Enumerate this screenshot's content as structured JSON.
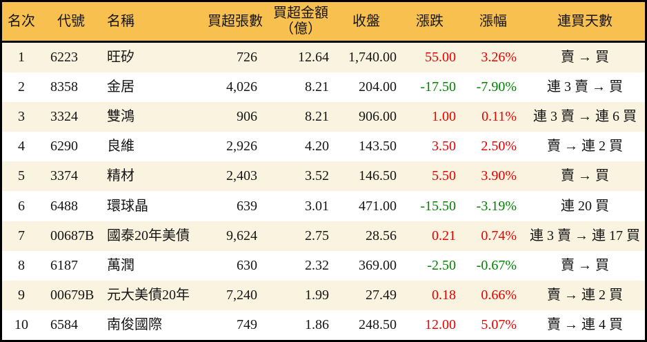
{
  "chart_data": {
    "type": "table",
    "columns": [
      {
        "key": "rank",
        "label": "名次",
        "sub": ""
      },
      {
        "key": "code",
        "label": "代號",
        "sub": ""
      },
      {
        "key": "name",
        "label": "名稱",
        "sub": ""
      },
      {
        "key": "shares",
        "label": "買超張數",
        "sub": ""
      },
      {
        "key": "amount",
        "label": "買超金額",
        "sub": "（億）"
      },
      {
        "key": "close",
        "label": "收盤",
        "sub": ""
      },
      {
        "key": "change",
        "label": "漲跌",
        "sub": ""
      },
      {
        "key": "change_pct",
        "label": "漲幅",
        "sub": ""
      },
      {
        "key": "streak",
        "label": "連買天數",
        "sub": ""
      }
    ],
    "rows": [
      {
        "rank": "1",
        "code": "6223",
        "name": "旺矽",
        "shares": "726",
        "amount": "12.64",
        "close": "1,740.00",
        "change": "55.00",
        "change_pct": "3.26%",
        "streak": "賣 → 買",
        "direction": "up"
      },
      {
        "rank": "2",
        "code": "8358",
        "name": "金居",
        "shares": "4,026",
        "amount": "8.21",
        "close": "204.00",
        "change": "-17.50",
        "change_pct": "-7.90%",
        "streak": "連 3 賣 → 買",
        "direction": "down"
      },
      {
        "rank": "3",
        "code": "3324",
        "name": "雙鴻",
        "shares": "906",
        "amount": "8.21",
        "close": "906.00",
        "change": "1.00",
        "change_pct": "0.11%",
        "streak": "連 3 賣 → 連 6 買",
        "direction": "up"
      },
      {
        "rank": "4",
        "code": "6290",
        "name": "良維",
        "shares": "2,926",
        "amount": "4.20",
        "close": "143.50",
        "change": "3.50",
        "change_pct": "2.50%",
        "streak": "賣 → 連 2 買",
        "direction": "up"
      },
      {
        "rank": "5",
        "code": "3374",
        "name": "精材",
        "shares": "2,403",
        "amount": "3.52",
        "close": "146.50",
        "change": "5.50",
        "change_pct": "3.90%",
        "streak": "賣 → 買",
        "direction": "up"
      },
      {
        "rank": "6",
        "code": "6488",
        "name": "環球晶",
        "shares": "639",
        "amount": "3.01",
        "close": "471.00",
        "change": "-15.50",
        "change_pct": "-3.19%",
        "streak": "連 20 買",
        "direction": "down"
      },
      {
        "rank": "7",
        "code": "00687B",
        "name": "國泰20年美債",
        "shares": "9,624",
        "amount": "2.75",
        "close": "28.56",
        "change": "0.21",
        "change_pct": "0.74%",
        "streak": "連 3 賣 → 連 17 買",
        "direction": "up"
      },
      {
        "rank": "8",
        "code": "6187",
        "name": "萬潤",
        "shares": "630",
        "amount": "2.32",
        "close": "369.00",
        "change": "-2.50",
        "change_pct": "-0.67%",
        "streak": "賣 → 買",
        "direction": "down"
      },
      {
        "rank": "9",
        "code": "00679B",
        "name": "元大美債20年",
        "shares": "7,240",
        "amount": "1.99",
        "close": "27.49",
        "change": "0.18",
        "change_pct": "0.66%",
        "streak": "賣 → 連 2 買",
        "direction": "up"
      },
      {
        "rank": "10",
        "code": "6584",
        "name": "南俊國際",
        "shares": "749",
        "amount": "1.86",
        "close": "248.50",
        "change": "12.00",
        "change_pct": "5.07%",
        "streak": "賣 → 連 4 買",
        "direction": "up"
      }
    ]
  },
  "colors": {
    "header_bg": "#f8c04e",
    "row_alt_bg": "#faf3df",
    "row_bg": "#ffffff",
    "up_text": "#e60000",
    "down_text": "#008000",
    "text": "#151515",
    "border": "#000000"
  }
}
